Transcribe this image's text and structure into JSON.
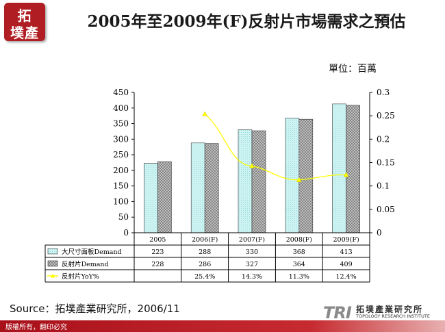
{
  "header": {
    "logo_top": "拓",
    "logo_chars": "墣產研",
    "title": "2005年至2009年(F)反射片市場需求之預估"
  },
  "unit_label": "單位：百萬",
  "source_text": "Source：拓墣產業研究所，2006/11",
  "footer": {
    "copyright": "版權所有，翻印必究",
    "brand_logo": "TRI",
    "brand_cn": "拓墣產業研究所",
    "brand_en": "TOPOLOGY RESEARCH INSTITUTE"
  },
  "colors": {
    "accent_red": "#b01e23",
    "series1_fill": "#ccf2f2",
    "series2_fill": "#cfcfcf",
    "yoy_line": "#ffff00"
  },
  "chart_data": {
    "type": "bar",
    "categories": [
      "2005",
      "2006(F)",
      "2007(F)",
      "2008(F)",
      "2009(F)"
    ],
    "series": [
      {
        "name": "大尺寸面板Demand",
        "type": "bar",
        "axis": "left",
        "values": [
          223,
          288,
          330,
          368,
          413
        ],
        "labels": [
          "223",
          "288",
          "330",
          "368",
          "413"
        ]
      },
      {
        "name": "反射片Demand",
        "type": "bar",
        "axis": "left",
        "values": [
          228,
          286,
          327,
          364,
          409
        ],
        "labels": [
          "228",
          "286",
          "327",
          "364",
          "409"
        ]
      },
      {
        "name": "反射片YoY%",
        "type": "line",
        "axis": "right",
        "values": [
          null,
          0.254,
          0.143,
          0.113,
          0.124
        ],
        "labels": [
          "",
          "25.4%",
          "14.3%",
          "11.3%",
          "12.4%"
        ]
      }
    ],
    "y_left": {
      "min": 0,
      "max": 450,
      "step": 50,
      "ticks": [
        "0",
        "50",
        "100",
        "150",
        "200",
        "250",
        "300",
        "350",
        "400",
        "450"
      ]
    },
    "y_right": {
      "min": 0,
      "max": 0.3,
      "step": 0.05,
      "ticks": [
        "0",
        "0.05",
        "0.1",
        "0.15",
        "0.2",
        "0.25",
        "0.3"
      ]
    },
    "grid": false,
    "legend": "data-table-below",
    "title": "",
    "xlabel": "",
    "ylabel": ""
  }
}
